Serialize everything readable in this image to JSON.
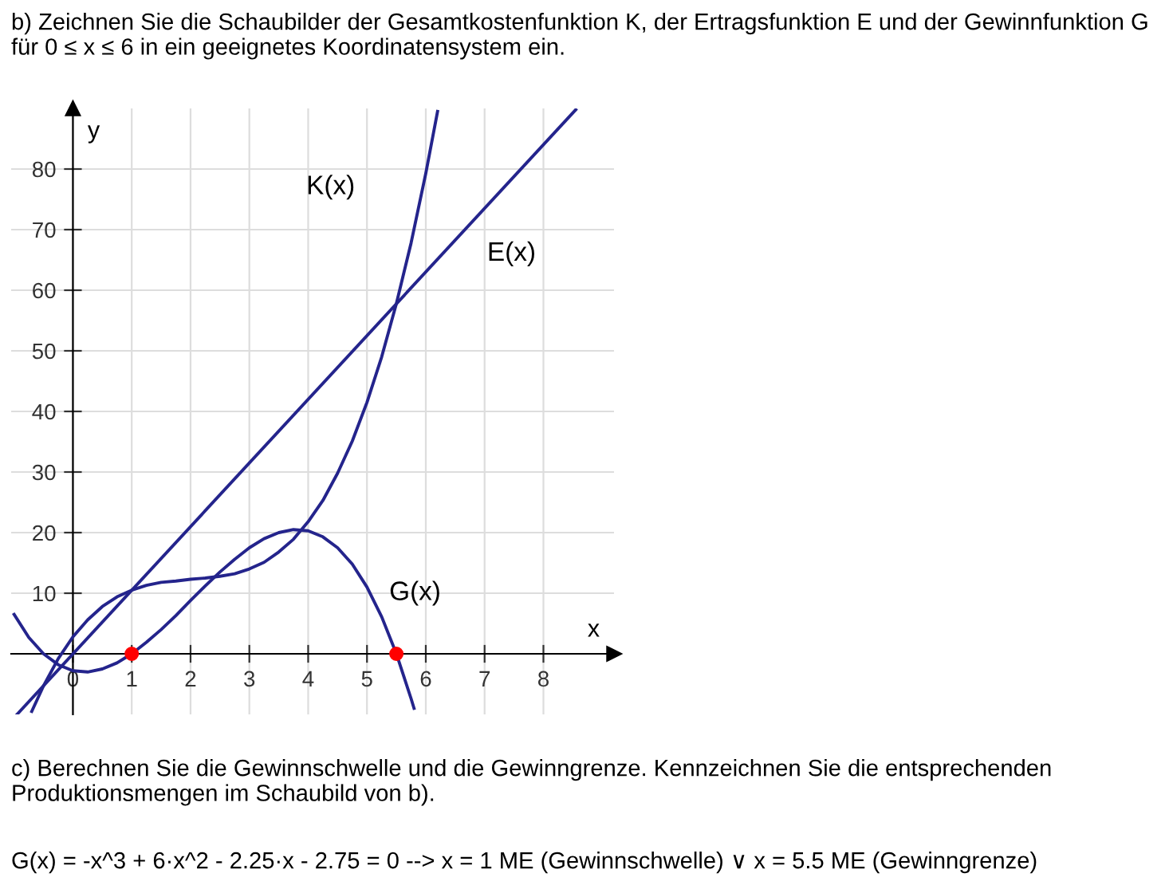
{
  "chart_data": {
    "type": "line",
    "title": "b) Zeichnen Sie die Schaubilder der Gesamtkostenfunktion K, der Ertragsfunktion E und der Gewinnfunktion G für 0 ≤ x ≤ 6 in ein geeignetes Koordinatensystem ein.",
    "xlabel": "x",
    "ylabel": "y",
    "series": [
      {
        "color": "#24248c",
        "x": [
          -0.7,
          -0.5,
          -0.25,
          0,
          0.25,
          0.5,
          0.75,
          1,
          1.25,
          1.5,
          1.75,
          2,
          2.25,
          2.5,
          2.75,
          3,
          3.25,
          3.5,
          3.75,
          4,
          4.25,
          4.5,
          4.75,
          5,
          5.25,
          5.5,
          5.75,
          6,
          6.2
        ],
        "values": [
          -9.5,
          -5.3,
          -0.8,
          2.8,
          5.6,
          7.8,
          9.4,
          10.5,
          11.3,
          11.8,
          12,
          12.3,
          12.5,
          12.8,
          13.2,
          14,
          15.1,
          16.8,
          18.9,
          21.8,
          25.3,
          29.8,
          35.1,
          41.5,
          49,
          57.8,
          67.8,
          79.3,
          89.5
        ]
      },
      {
        "color": "#24248c",
        "x": [
          -0.95,
          8.55
        ],
        "values": [
          -10,
          89.8
        ]
      },
      {
        "color": "#24248c",
        "x": [
          -1,
          -0.75,
          -0.5,
          -0.25,
          0,
          0.25,
          0.5,
          0.75,
          1,
          1.25,
          1.5,
          1.75,
          2,
          2.25,
          2.5,
          2.75,
          3,
          3.25,
          3.5,
          3.75,
          4,
          4.25,
          4.5,
          4.75,
          5,
          5.25,
          5.5,
          5.75,
          5.8
        ],
        "values": [
          6.5,
          2.7,
          0,
          -1.8,
          -2.8,
          -3,
          -2.5,
          -1.5,
          0,
          1.9,
          4,
          6.3,
          8.8,
          11.2,
          13.5,
          15.6,
          17.5,
          19,
          20,
          20.5,
          20.3,
          19.3,
          17.5,
          14.8,
          11,
          6.1,
          0,
          -7.4,
          -9
        ]
      },
      {
        "type": "scatter",
        "marker": "circle",
        "color": "#ff0000",
        "x": [
          1,
          5.5
        ],
        "values": [
          0,
          0
        ]
      }
    ],
    "xlim": [
      -1.05,
      9.2
    ],
    "ylim": [
      -10,
      90
    ],
    "xticks": [
      0,
      1,
      2,
      3,
      4,
      5,
      6,
      7,
      8
    ],
    "yticks": [
      10,
      20,
      30,
      40,
      50,
      60,
      70,
      80
    ],
    "grid": true,
    "marker": "none",
    "annotations": [
      "K(x)",
      "E(x)",
      "G(x)",
      "c) Berechnen Sie die Gewinnschwelle und die Gewinngrenze. Kennzeichnen Sie die entsprechenden Produktionsmengen im Schaubild von b).",
      "G(x) = -x^3 + 6·x^2 - 2.25·x - 2.75 = 0 --> x = 1 ME (Gewinnschwelle) ∨ x = 5.5 ME (Gewinngrenze)"
    ]
  }
}
